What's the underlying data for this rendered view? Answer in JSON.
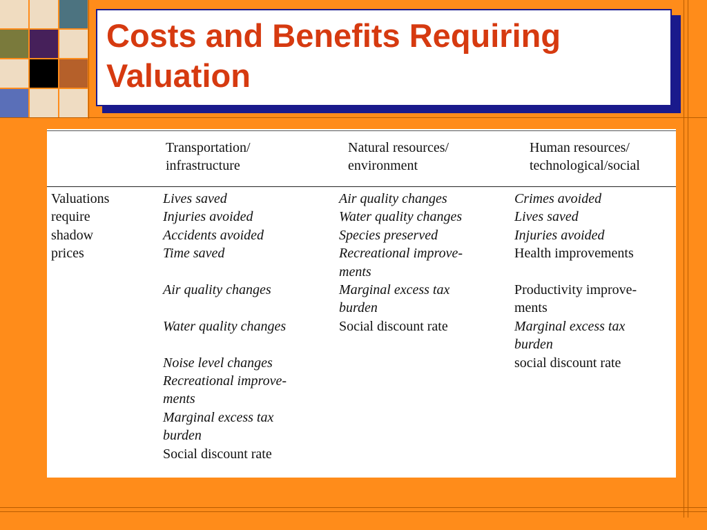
{
  "slide": {
    "title_line1": "Costs and Benefits Requiring",
    "title_line2": "Valuation"
  },
  "colors": {
    "background": "#ff8c1a",
    "title_text": "#d63a10",
    "title_shadow": "#1a1a8c"
  },
  "table": {
    "headers": {
      "col1": [
        "Transportation/",
        "infrastructure"
      ],
      "col2": [
        "Natural resources/",
        "environment"
      ],
      "col3": [
        "Human resources/",
        "technological/social"
      ]
    },
    "row_label": [
      "Valuations",
      "require",
      "shadow",
      "prices"
    ],
    "col1": [
      {
        "text": "Lives saved",
        "italic": true
      },
      {
        "text": "Injuries avoided",
        "italic": true
      },
      {
        "text": "Accidents avoided",
        "italic": true
      },
      {
        "text": "Time saved",
        "italic": true
      },
      {
        "text": "",
        "italic": false
      },
      {
        "text": "Air quality changes",
        "italic": true
      },
      {
        "text": "",
        "italic": false
      },
      {
        "text": "Water quality changes",
        "italic": true
      },
      {
        "text": "",
        "italic": false
      },
      {
        "text": "Noise level changes",
        "italic": true
      },
      {
        "text": "Recreational improve-",
        "italic": true
      },
      {
        "text": "ments",
        "italic": true
      },
      {
        "text": "Marginal excess tax",
        "italic": true
      },
      {
        "text": "burden",
        "italic": true
      },
      {
        "text": "Social discount rate",
        "italic": false
      }
    ],
    "col2": [
      {
        "text": "Air quality changes",
        "italic": true
      },
      {
        "text": "Water quality changes",
        "italic": true
      },
      {
        "text": "Species preserved",
        "italic": true
      },
      {
        "text": "Recreational improve-",
        "italic": true
      },
      {
        "text": "ments",
        "italic": true
      },
      {
        "text": "Marginal excess tax",
        "italic": true
      },
      {
        "text": "burden",
        "italic": true
      },
      {
        "text": "Social discount rate",
        "italic": false
      }
    ],
    "col3": [
      {
        "text": "Crimes avoided",
        "italic": true
      },
      {
        "text": "Lives saved",
        "italic": true
      },
      {
        "text": "Injuries avoided",
        "italic": true
      },
      {
        "text": "Health improvements",
        "italic": false
      },
      {
        "text": "",
        "italic": false
      },
      {
        "text": "Productivity improve-",
        "italic": false
      },
      {
        "text": "ments",
        "italic": false
      },
      {
        "text": "Marginal excess tax",
        "italic": true
      },
      {
        "text": "burden",
        "italic": true
      },
      {
        "text": "social discount rate",
        "italic": false
      }
    ]
  }
}
